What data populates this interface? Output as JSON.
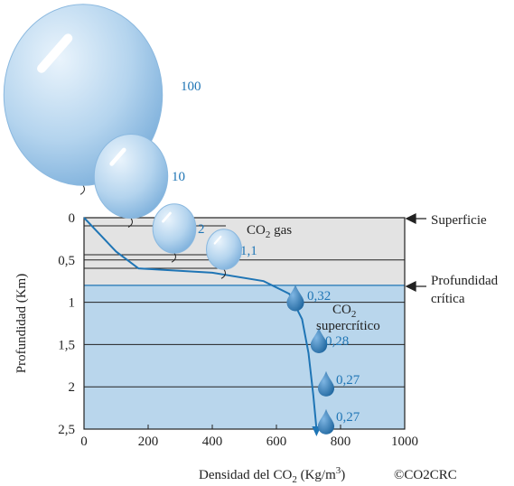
{
  "chart_data": {
    "type": "line",
    "x_label": [
      "Densidad del CO",
      "2",
      " (Kg/m",
      "3",
      ")"
    ],
    "y_label": "Profundidad (Km)",
    "credit": "©CO2CRC",
    "xlim": [
      0,
      1000
    ],
    "ylim": [
      0,
      2.5
    ],
    "xticks": [
      0,
      200,
      400,
      600,
      800,
      1000
    ],
    "yticks": [
      0,
      {
        "value": 0.5,
        "label": "0,5"
      },
      1,
      {
        "value": 1.5,
        "label": "1,5"
      },
      2,
      {
        "value": 2.5,
        "label": "2,5"
      }
    ],
    "critical_depth": 0.8,
    "curve": {
      "color": "#1f75b5",
      "x": [
        0,
        50,
        100,
        170,
        400,
        560,
        640,
        680,
        700,
        715,
        725
      ],
      "values": [
        0,
        0.2,
        0.4,
        0.6,
        0.65,
        0.75,
        0.9,
        1.2,
        1.6,
        2.1,
        2.5
      ]
    },
    "balloons": {
      "values": [
        100,
        10,
        2,
        1.1
      ],
      "value_labels": [
        "100",
        "10",
        "2",
        "1,1"
      ]
    },
    "drops": {
      "values": [
        0.32,
        0.28,
        0.27,
        0.27
      ],
      "value_labels": [
        "0,32",
        "0,28",
        "0,27",
        "0,27"
      ]
    },
    "annotations": {
      "gas": [
        "CO",
        "2",
        " gas"
      ],
      "supercritical": [
        "CO",
        "2",
        "supercrítico"
      ],
      "surface": "Superficie",
      "critical": [
        "Profundidad",
        "crítica"
      ]
    }
  }
}
